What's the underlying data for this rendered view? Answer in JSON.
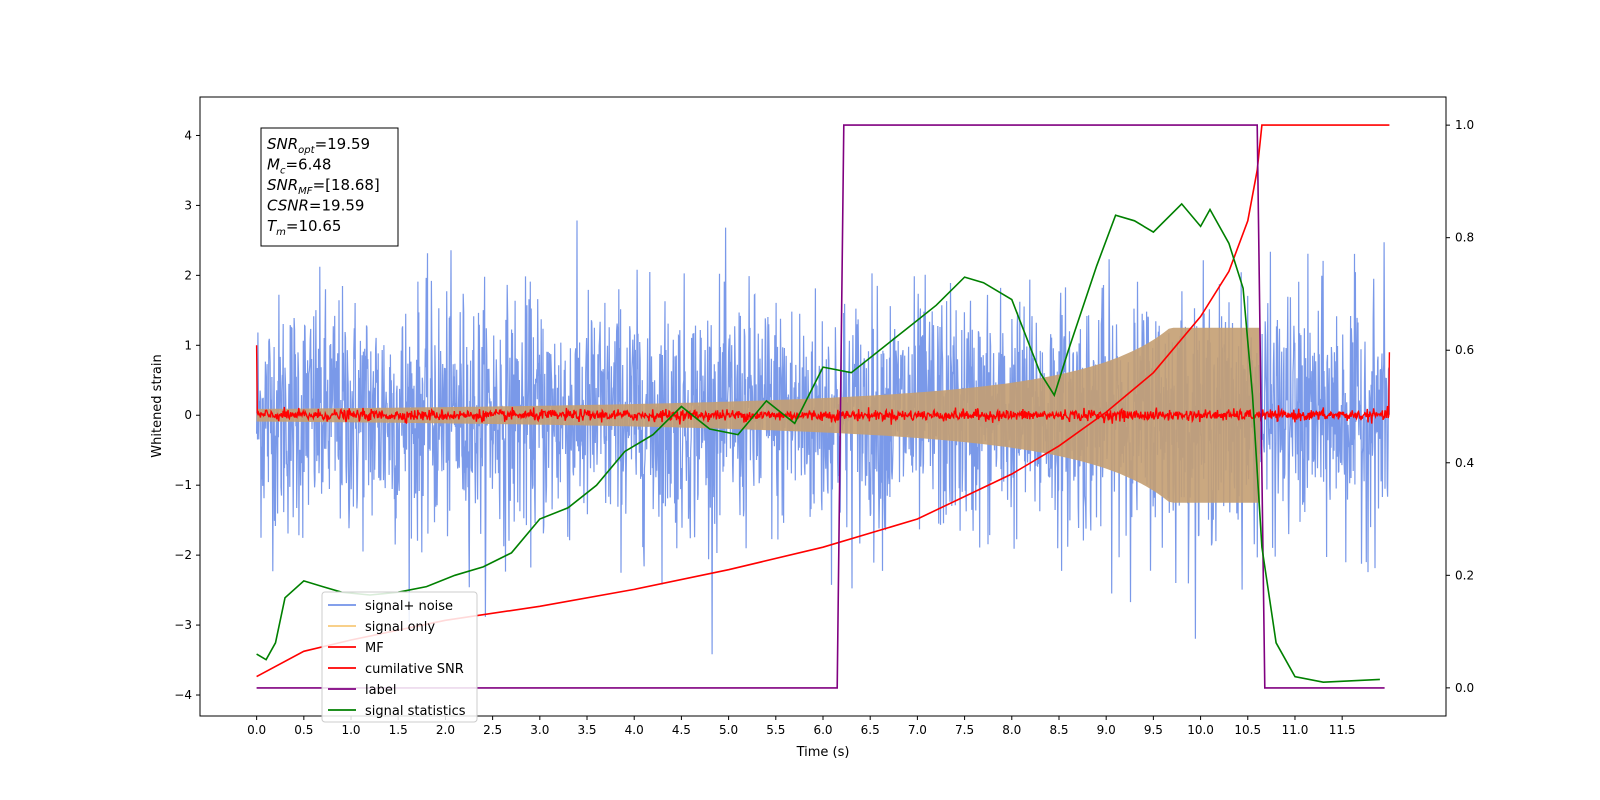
{
  "chart_data": {
    "type": "line",
    "xlabel": "Time (s)",
    "ylabel": "Whitened strain",
    "xlim": [
      -0.6,
      12.6
    ],
    "ylim": [
      -4.3,
      4.55
    ],
    "y2lim": [
      -0.05,
      1.05
    ],
    "xticks": [
      "0.0",
      "0.5",
      "1.0",
      "1.5",
      "2.0",
      "2.5",
      "3.0",
      "3.5",
      "4.0",
      "4.5",
      "5.0",
      "5.5",
      "6.0",
      "6.5",
      "7.0",
      "7.5",
      "8.0",
      "8.5",
      "9.0",
      "9.5",
      "10.0",
      "10.5",
      "11.0",
      "11.5"
    ],
    "yticks": [
      -4,
      -3,
      -2,
      -1,
      0,
      1,
      2,
      3,
      4
    ],
    "y2ticks": [
      "0.0",
      "0.2",
      "0.4",
      "0.6",
      "0.8",
      "1.0"
    ],
    "grid": false,
    "legend_position": "lower-left",
    "annotation": {
      "lines": [
        {
          "name": "SNR",
          "sub": "opt",
          "value": "=19.59"
        },
        {
          "name": "M",
          "sub": "c",
          "value": "=6.48"
        },
        {
          "name": "SNR",
          "sub": "MF",
          "value": "=[18.68]"
        },
        {
          "name": "CSNR",
          "sub": "",
          "value": "=19.59"
        },
        {
          "name": "T",
          "sub": "m",
          "value": "=10.65"
        }
      ]
    },
    "series": [
      {
        "name": "signal+ noise",
        "color": "#7393e8",
        "axis": "left",
        "kind": "noise",
        "approx_std": 0.85,
        "x_range": [
          0,
          12
        ]
      },
      {
        "name": "signal only",
        "color": "#f7c97a",
        "axis": "left",
        "kind": "chirp",
        "merger_time": 10.65,
        "peak_amplitude": 1.25
      },
      {
        "name": "MF",
        "color": "#ff0000",
        "axis": "left",
        "kind": "noise",
        "approx_std": 0.04,
        "x_range": [
          0,
          12
        ]
      },
      {
        "name": "cumilative SNR",
        "color": "#ff0000",
        "axis": "right",
        "points": [
          [
            0.0,
            0.02
          ],
          [
            0.5,
            0.065
          ],
          [
            1.0,
            0.085
          ],
          [
            2.0,
            0.12
          ],
          [
            3.0,
            0.145
          ],
          [
            4.0,
            0.175
          ],
          [
            5.0,
            0.21
          ],
          [
            6.0,
            0.25
          ],
          [
            7.0,
            0.3
          ],
          [
            8.0,
            0.38
          ],
          [
            8.5,
            0.43
          ],
          [
            9.0,
            0.49
          ],
          [
            9.5,
            0.56
          ],
          [
            10.0,
            0.66
          ],
          [
            10.3,
            0.74
          ],
          [
            10.5,
            0.83
          ],
          [
            10.6,
            0.92
          ],
          [
            10.65,
            1.0
          ],
          [
            12.0,
            1.0
          ]
        ]
      },
      {
        "name": "label",
        "color": "#800080",
        "axis": "right",
        "points": [
          [
            0.0,
            0.0
          ],
          [
            6.15,
            0.0
          ],
          [
            6.22,
            1.0
          ],
          [
            10.6,
            1.0
          ],
          [
            10.68,
            0.0
          ],
          [
            11.95,
            0.0
          ]
        ]
      },
      {
        "name": "signal statistics",
        "color": "#008000",
        "axis": "right",
        "points": [
          [
            0.0,
            0.06
          ],
          [
            0.1,
            0.05
          ],
          [
            0.2,
            0.08
          ],
          [
            0.3,
            0.16
          ],
          [
            0.5,
            0.19
          ],
          [
            0.7,
            0.18
          ],
          [
            0.9,
            0.17
          ],
          [
            1.2,
            0.165
          ],
          [
            1.5,
            0.17
          ],
          [
            1.8,
            0.18
          ],
          [
            2.1,
            0.2
          ],
          [
            2.4,
            0.215
          ],
          [
            2.7,
            0.24
          ],
          [
            3.0,
            0.3
          ],
          [
            3.3,
            0.32
          ],
          [
            3.6,
            0.36
          ],
          [
            3.9,
            0.42
          ],
          [
            4.2,
            0.45
          ],
          [
            4.5,
            0.5
          ],
          [
            4.8,
            0.46
          ],
          [
            5.1,
            0.45
          ],
          [
            5.4,
            0.51
          ],
          [
            5.7,
            0.47
          ],
          [
            6.0,
            0.57
          ],
          [
            6.3,
            0.56
          ],
          [
            6.6,
            0.6
          ],
          [
            6.9,
            0.64
          ],
          [
            7.2,
            0.68
          ],
          [
            7.5,
            0.73
          ],
          [
            7.7,
            0.72
          ],
          [
            8.0,
            0.69
          ],
          [
            8.3,
            0.56
          ],
          [
            8.45,
            0.52
          ],
          [
            8.6,
            0.6
          ],
          [
            8.9,
            0.75
          ],
          [
            9.1,
            0.84
          ],
          [
            9.3,
            0.83
          ],
          [
            9.5,
            0.81
          ],
          [
            9.8,
            0.86
          ],
          [
            10.0,
            0.82
          ],
          [
            10.1,
            0.85
          ],
          [
            10.3,
            0.79
          ],
          [
            10.45,
            0.71
          ],
          [
            10.55,
            0.52
          ],
          [
            10.65,
            0.25
          ],
          [
            10.8,
            0.08
          ],
          [
            11.0,
            0.02
          ],
          [
            11.3,
            0.01
          ],
          [
            11.9,
            0.015
          ]
        ]
      }
    ]
  }
}
